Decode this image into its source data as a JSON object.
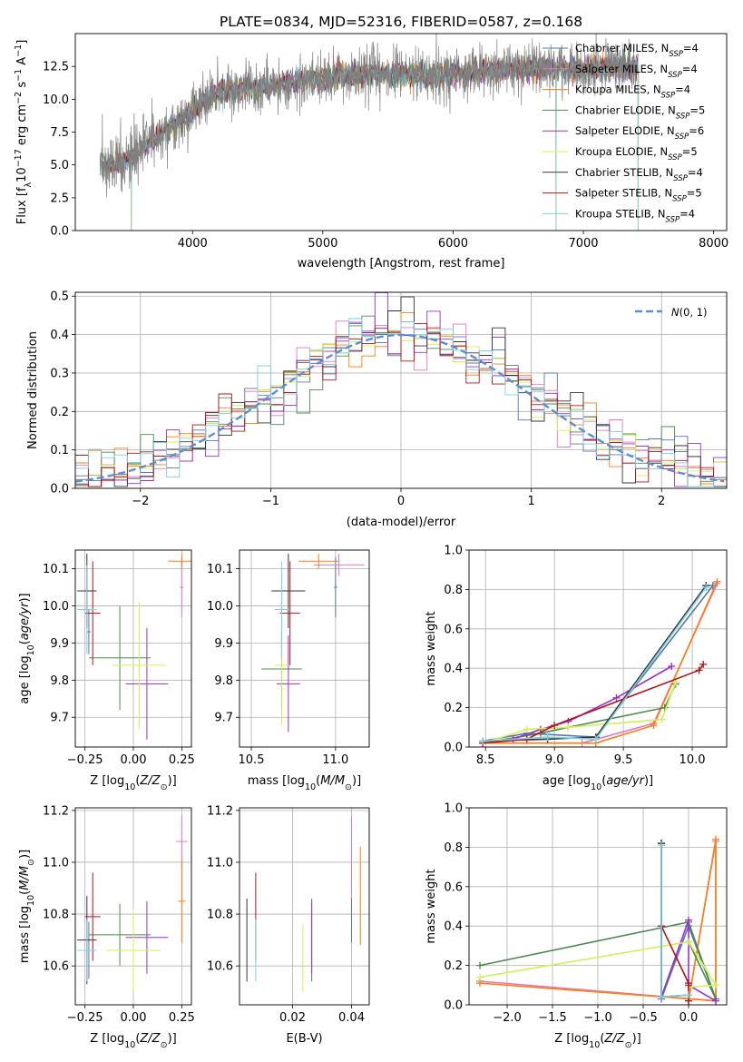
{
  "figure_title": "PLATE=0834, MJD=52316, FIBERID=0587, z=0.168",
  "series_names": [
    "Chabrier MILES, N_SSP=4",
    "Salpeter MILES, N_SSP=4",
    "Kroupa MILES, N_SSP=4",
    "Chabrier ELODIE, N_SSP=5",
    "Salpeter ELODIE, N_SSP=6",
    "Kroupa ELODIE, N_SSP=5",
    "Chabrier STELIB, N_SSP=4",
    "Salpeter STELIB, N_SSP=5",
    "Kroupa STELIB, N_SSP=4"
  ],
  "colors": {
    "series": [
      "#5577aa",
      "#e377c2",
      "#ff7f0e",
      "#4c8a4c",
      "#9b30c8",
      "#d4f050",
      "#333333",
      "#b0141e",
      "#7ed0e0"
    ],
    "data_gray": "#808080",
    "normal_curve": "#5b8ed6",
    "grid": "#b0b0b0"
  },
  "chart_data": [
    {
      "id": "spectrum",
      "type": "line",
      "title": "",
      "xlabel": "wavelength [Angstrom, rest frame]",
      "ylabel": "Flux [f_λ 10^-17 erg cm^-2 s^-1 A^-1]",
      "xlim": [
        3100,
        8100
      ],
      "ylim": [
        0,
        15
      ],
      "xticks": [
        4000,
        5000,
        6000,
        7000,
        8000
      ],
      "yticks": [
        0.0,
        2.5,
        5.0,
        7.5,
        10.0,
        12.5
      ],
      "yticklabels": [
        "0.0",
        "2.5",
        "5.0",
        "7.5",
        "10.0",
        "12.5"
      ],
      "grid": false,
      "legend": "right",
      "continuum": [
        [
          3290,
          5.0
        ],
        [
          3500,
          5.2
        ],
        [
          3700,
          7.0
        ],
        [
          3850,
          8.0
        ],
        [
          3950,
          8.6
        ],
        [
          4050,
          9.6
        ],
        [
          4200,
          10.5
        ],
        [
          4400,
          10.9
        ],
        [
          4600,
          11.0
        ],
        [
          4800,
          11.3
        ],
        [
          5000,
          11.6
        ],
        [
          5200,
          11.8
        ],
        [
          5400,
          11.9
        ],
        [
          5600,
          11.9
        ],
        [
          5800,
          11.8
        ],
        [
          6000,
          11.9
        ],
        [
          6200,
          12.1
        ],
        [
          6400,
          12.3
        ],
        [
          6600,
          12.4
        ],
        [
          6800,
          12.4
        ],
        [
          7000,
          12.3
        ],
        [
          7200,
          12.4
        ],
        [
          7420,
          12.5
        ]
      ],
      "model_drops": [
        [
          3530,
          0
        ],
        [
          3905,
          0
        ],
        [
          5890,
          10.3
        ],
        [
          6790,
          0
        ],
        [
          7420,
          0
        ]
      ]
    },
    {
      "id": "residuals",
      "type": "histogram",
      "title": "",
      "xlabel": "(data-model)/error",
      "ylabel": "Normed distribution",
      "xlim": [
        -2.5,
        2.5
      ],
      "ylim": [
        0,
        0.51
      ],
      "xticks": [
        -2,
        -1,
        0,
        1,
        2
      ],
      "xticklabels": [
        "−2",
        "−1",
        "0",
        "1",
        "2"
      ],
      "yticks": [
        0.0,
        0.1,
        0.2,
        0.3,
        0.4,
        0.5
      ],
      "yticklabels": [
        "0.0",
        "0.1",
        "0.2",
        "0.3",
        "0.4",
        "0.5"
      ],
      "grid": true,
      "legend": "top-right",
      "legend_label": "N(0,1)",
      "bin_width": 0.1
    },
    {
      "id": "age_vs_Z",
      "type": "errorbar",
      "title": "",
      "xlabel": "Z [log10(Z/Z⊙)]",
      "ylabel": "age  [log10(age/yr)]",
      "xlim": [
        -0.3,
        0.3
      ],
      "ylim": [
        9.62,
        10.15
      ],
      "xticks": [
        -0.25,
        0.0,
        0.25
      ],
      "xticklabels": [
        "−0.25",
        "0.00",
        "0.25"
      ],
      "yticks": [
        9.7,
        9.8,
        9.9,
        10.0,
        10.1
      ],
      "yticklabels": [
        "9.7",
        "9.8",
        "9.9",
        "10.0",
        "10.1"
      ],
      "grid": true,
      "points": [
        {
          "x": -0.23,
          "y": 9.93,
          "xerr": 0.01,
          "yerr": 0.06
        },
        {
          "x": 0.25,
          "y": 10.05,
          "xerr": 0.01,
          "yerr": 0.08
        },
        {
          "x": 0.25,
          "y": 10.12,
          "xerr": 0.07,
          "yerr": 0.02
        },
        {
          "x": -0.07,
          "y": 9.86,
          "xerr": 0.16,
          "yerr": 0.14
        },
        {
          "x": 0.07,
          "y": 9.79,
          "xerr": 0.11,
          "yerr": 0.15
        },
        {
          "x": 0.03,
          "y": 9.84,
          "xerr": 0.14,
          "yerr": 0.17
        },
        {
          "x": -0.24,
          "y": 10.04,
          "xerr": 0.05,
          "yerr": 0.1
        },
        {
          "x": -0.21,
          "y": 9.98,
          "xerr": 0.04,
          "yerr": 0.14
        },
        {
          "x": -0.24,
          "y": 9.99,
          "xerr": 0.05,
          "yerr": 0.12
        }
      ]
    },
    {
      "id": "age_vs_mass",
      "type": "errorbar",
      "title": "",
      "xlabel": "mass [log10(M/M⊙)]",
      "ylabel": "",
      "xlim": [
        10.43,
        11.2
      ],
      "ylim": [
        9.62,
        10.15
      ],
      "xticks": [
        10.5,
        11.0
      ],
      "xticklabels": [
        "10.5",
        "11.0"
      ],
      "yticks": [
        9.7,
        9.8,
        9.9,
        10.0,
        10.1
      ],
      "yticklabels": [
        "9.7",
        "9.8",
        "9.9",
        "10.0",
        "10.1"
      ],
      "grid": true,
      "points": [
        {
          "x": 11.0,
          "y": 10.05,
          "xerr": 0.01,
          "yerr": 0.08
        },
        {
          "x": 11.02,
          "y": 10.11,
          "xerr": 0.15,
          "yerr": 0.03
        },
        {
          "x": 10.9,
          "y": 10.12,
          "xerr": 0.12,
          "yerr": 0.02
        },
        {
          "x": 10.68,
          "y": 9.83,
          "xerr": 0.12,
          "yerr": 0.1
        },
        {
          "x": 10.72,
          "y": 9.79,
          "xerr": 0.07,
          "yerr": 0.13
        },
        {
          "x": 10.68,
          "y": 9.84,
          "xerr": 0.04,
          "yerr": 0.16
        },
        {
          "x": 10.72,
          "y": 10.04,
          "xerr": 0.1,
          "yerr": 0.1
        },
        {
          "x": 10.73,
          "y": 9.98,
          "xerr": 0.06,
          "yerr": 0.14
        },
        {
          "x": 10.68,
          "y": 9.99,
          "xerr": 0.04,
          "yerr": 0.13
        }
      ]
    },
    {
      "id": "weight_vs_age",
      "type": "line",
      "title": "",
      "xlabel": "age  [log10(age/yr)]",
      "ylabel": "mass weight",
      "xlim": [
        8.38,
        10.25
      ],
      "ylim": [
        0,
        1
      ],
      "xticks": [
        8.5,
        9.0,
        9.5,
        10.0
      ],
      "xticklabels": [
        "8.5",
        "9.0",
        "9.5",
        "10.0"
      ],
      "yticks": [
        0.0,
        0.2,
        0.4,
        0.6,
        0.8,
        1.0
      ],
      "yticklabels": [
        "0.0",
        "0.2",
        "0.4",
        "0.6",
        "0.8",
        "1.0"
      ],
      "grid": true,
      "series": [
        {
          "x": [
            8.48,
            8.8,
            9.3,
            10.15
          ],
          "y": [
            0.03,
            0.07,
            0.05,
            0.82
          ]
        },
        {
          "x": [
            8.48,
            9.2,
            9.72,
            10.18
          ],
          "y": [
            0.02,
            0.02,
            0.12,
            0.83
          ]
        },
        {
          "x": [
            8.48,
            9.3,
            9.72,
            10.18
          ],
          "y": [
            0.02,
            0.02,
            0.11,
            0.84
          ]
        },
        {
          "x": [
            8.48,
            8.9,
            9.1,
            9.8,
            9.88
          ],
          "y": [
            0.02,
            0.07,
            0.1,
            0.2,
            0.32
          ]
        },
        {
          "x": [
            8.48,
            8.7,
            8.9,
            9.1,
            9.45,
            9.85
          ],
          "y": [
            0.02,
            0.04,
            0.09,
            0.13,
            0.25,
            0.41
          ]
        },
        {
          "x": [
            8.48,
            8.8,
            9.1,
            9.78,
            9.88
          ],
          "y": [
            0.02,
            0.09,
            0.1,
            0.14,
            0.33
          ]
        },
        {
          "x": [
            8.48,
            8.95,
            9.3,
            10.1
          ],
          "y": [
            0.03,
            0.04,
            0.05,
            0.82
          ]
        },
        {
          "x": [
            8.48,
            8.8,
            9.0,
            10.05,
            10.08
          ],
          "y": [
            0.02,
            0.04,
            0.11,
            0.39,
            0.42
          ]
        },
        {
          "x": [
            8.48,
            8.95,
            9.3,
            10.1
          ],
          "y": [
            0.03,
            0.05,
            0.04,
            0.81
          ]
        }
      ]
    },
    {
      "id": "mass_vs_Z",
      "type": "errorbar",
      "title": "",
      "xlabel": "Z [log10(Z/Z⊙)]",
      "ylabel": "mass [log10(M/M⊙)]",
      "xlim": [
        -0.3,
        0.3
      ],
      "ylim": [
        10.45,
        11.21
      ],
      "xticks": [
        -0.25,
        0.0,
        0.25
      ],
      "xticklabels": [
        "−0.25",
        "0.00",
        "0.25"
      ],
      "yticks": [
        10.6,
        10.8,
        11.0,
        11.2
      ],
      "yticklabels": [
        "10.6",
        "10.8",
        "11.0",
        "11.2"
      ],
      "grid": true,
      "points": [
        {
          "x": -0.23,
          "y": 10.66,
          "xerr": 0.01,
          "yerr": 0.11
        },
        {
          "x": 0.25,
          "y": 11.08,
          "xerr": 0.03,
          "yerr": 0.1
        },
        {
          "x": 0.25,
          "y": 10.85,
          "xerr": 0.02,
          "yerr": 0.16
        },
        {
          "x": -0.07,
          "y": 10.72,
          "xerr": 0.16,
          "yerr": 0.12
        },
        {
          "x": 0.07,
          "y": 10.71,
          "xerr": 0.11,
          "yerr": 0.14
        },
        {
          "x": 0.0,
          "y": 10.66,
          "xerr": 0.14,
          "yerr": 0.16
        },
        {
          "x": -0.24,
          "y": 10.7,
          "xerr": 0.05,
          "yerr": 0.17
        },
        {
          "x": -0.21,
          "y": 10.79,
          "xerr": 0.04,
          "yerr": 0.17
        },
        {
          "x": -0.24,
          "y": 10.66,
          "xerr": 0.05,
          "yerr": 0.12
        }
      ]
    },
    {
      "id": "mass_vs_ebv",
      "type": "errorbar",
      "title": "",
      "xlabel": "E(B-V)",
      "ylabel": "",
      "xlim": [
        0.002,
        0.046
      ],
      "ylim": [
        10.45,
        11.21
      ],
      "xticks": [
        0.02,
        0.04
      ],
      "xticklabels": [
        "0.02",
        "0.04"
      ],
      "yticks": [
        10.6,
        10.8,
        11.0,
        11.2
      ],
      "yticklabels": [
        "10.6",
        "10.8",
        "11.0",
        "11.2"
      ],
      "grid": true,
      "points": [
        {
          "x": 0.04,
          "y": 10.86,
          "xerr": 0,
          "yerr": 0.17
        },
        {
          "x": 0.04,
          "y": 11.02,
          "xerr": 0,
          "yerr": 0.16
        },
        {
          "x": 0.043,
          "y": 10.87,
          "xerr": 0,
          "yerr": 0.19
        },
        {
          "x": 0.0265,
          "y": 10.7,
          "xerr": 0,
          "yerr": 0.16
        },
        {
          "x": 0.0265,
          "y": 10.71,
          "xerr": 0,
          "yerr": 0.14
        },
        {
          "x": 0.0235,
          "y": 10.63,
          "xerr": 0,
          "yerr": 0.13
        },
        {
          "x": 0.0045,
          "y": 10.7,
          "xerr": 0,
          "yerr": 0.16
        },
        {
          "x": 0.0075,
          "y": 10.79,
          "xerr": 0,
          "yerr": 0.17
        },
        {
          "x": 0.0075,
          "y": 10.66,
          "xerr": 0,
          "yerr": 0.12
        }
      ]
    },
    {
      "id": "weight_vs_Z",
      "type": "line",
      "title": "",
      "xlabel": "Z [log10(Z/Z⊙)]",
      "ylabel": "mass weight",
      "xlim": [
        -2.42,
        0.42
      ],
      "ylim": [
        0,
        1
      ],
      "xticks": [
        -2.0,
        -1.5,
        -1.0,
        -0.5,
        0.0
      ],
      "xticklabels": [
        "−2.0",
        "−1.5",
        "−1.0",
        "−0.5",
        "0.0"
      ],
      "yticks": [
        0.0,
        0.2,
        0.4,
        0.6,
        0.8,
        1.0
      ],
      "yticklabels": [
        "0.0",
        "0.2",
        "0.4",
        "0.6",
        "0.8",
        "1.0"
      ],
      "grid": true,
      "series": [
        {
          "x": [
            -0.3,
            -0.3,
            0.0,
            0.3
          ],
          "y": [
            0.82,
            0.03,
            0.4,
            0.03
          ]
        },
        {
          "x": [
            -2.3,
            0.3,
            0.3,
            0.0
          ],
          "y": [
            0.12,
            0.02,
            0.83,
            0.02
          ]
        },
        {
          "x": [
            -2.3,
            0.3,
            0.3,
            0.0
          ],
          "y": [
            0.11,
            0.02,
            0.84,
            0.02
          ]
        },
        {
          "x": [
            -2.3,
            0.0,
            0.3,
            0.0
          ],
          "y": [
            0.2,
            0.42,
            0.03,
            0.32
          ]
        },
        {
          "x": [
            -0.3,
            0.0,
            0.0,
            0.3
          ],
          "y": [
            0.04,
            0.43,
            0.1,
            0.02
          ]
        },
        {
          "x": [
            -2.3,
            0.0,
            0.3,
            0.0
          ],
          "y": [
            0.14,
            0.32,
            0.1,
            0.09
          ]
        },
        {
          "x": [
            -0.3,
            -0.3,
            0.0
          ],
          "y": [
            0.82,
            0.04,
            0.05
          ]
        },
        {
          "x": [
            -0.3,
            0.0,
            0.0
          ],
          "y": [
            0.4,
            0.11,
            0.02
          ]
        },
        {
          "x": [
            -0.3,
            -0.3,
            0.0
          ],
          "y": [
            0.81,
            0.04,
            0.05
          ]
        }
      ]
    }
  ]
}
